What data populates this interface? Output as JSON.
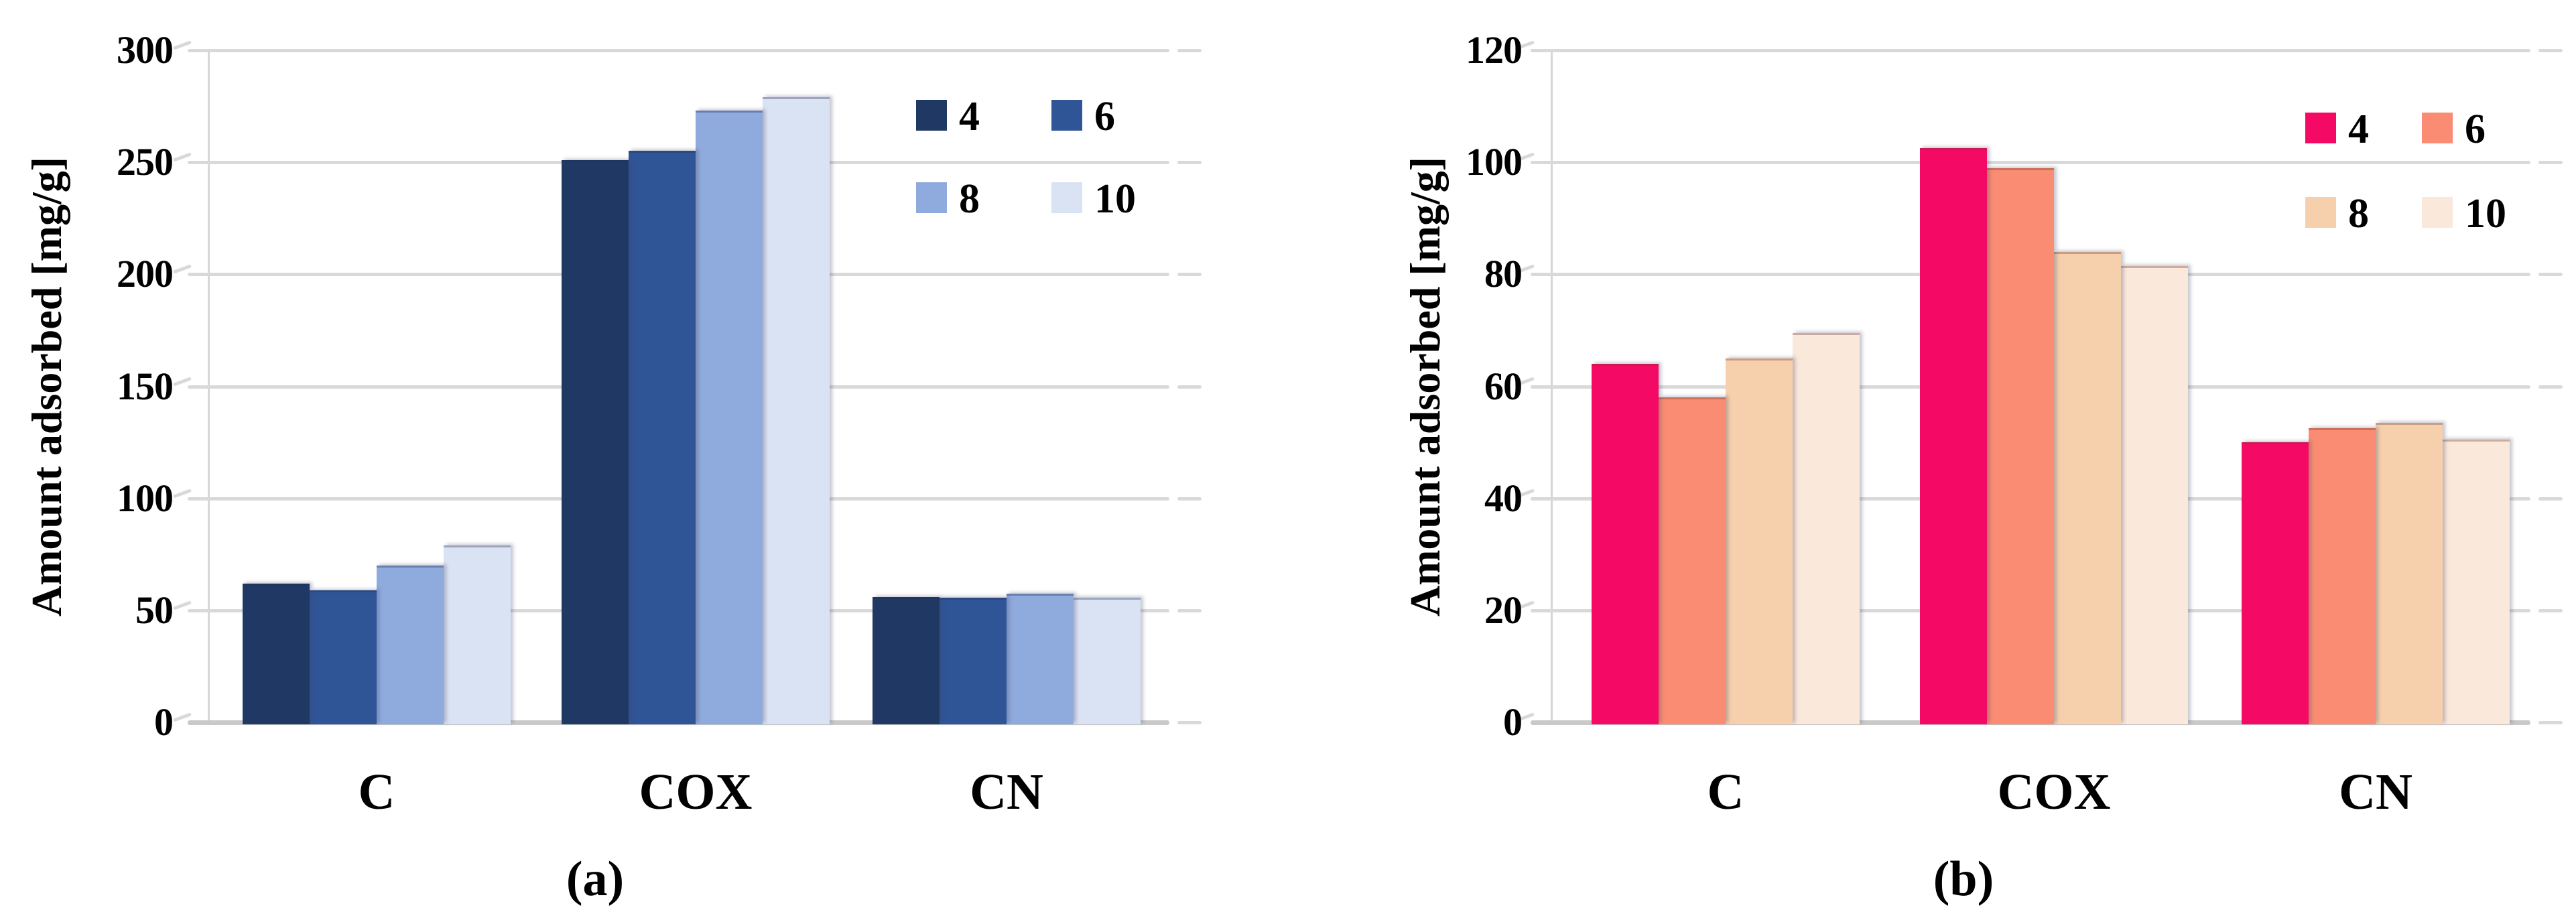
{
  "figure": {
    "axis_title": "Amount adsorbed [mg/g]",
    "categories": [
      "C",
      "COX",
      "CN"
    ],
    "legend_labels": [
      "4",
      "6",
      "8",
      "10"
    ],
    "grid_color": "#d9d9d9",
    "background_color": "#ffffff"
  },
  "chart_data": [
    {
      "id": "a",
      "type": "bar",
      "caption": "(a)",
      "ylabel": "Amount adsorbed [mg/g]",
      "xlabel": "",
      "categories": [
        "C",
        "COX",
        "CN"
      ],
      "series": [
        {
          "name": "4",
          "color": "#1F3864",
          "values": [
            62,
            251,
            56
          ]
        },
        {
          "name": "6",
          "color": "#2F5597",
          "values": [
            59,
            255,
            55.5
          ]
        },
        {
          "name": "8",
          "color": "#8FAADC",
          "values": [
            70,
            273,
            57.5
          ]
        },
        {
          "name": "10",
          "color": "#DAE3F3",
          "values": [
            79,
            279,
            55.5
          ]
        }
      ],
      "ylim": [
        0,
        300
      ],
      "ytick_step": 50,
      "yticks": [
        "0",
        "50",
        "100",
        "150",
        "200",
        "250",
        "300"
      ],
      "grid": true,
      "legend_position": "top-right"
    },
    {
      "id": "b",
      "type": "bar",
      "caption": "(b)",
      "ylabel": "Amount adsorbed [mg/g]",
      "xlabel": "",
      "categories": [
        "C",
        "COX",
        "CN"
      ],
      "series": [
        {
          "name": "4",
          "color": "#F40A64",
          "values": [
            64,
            102.5,
            50
          ]
        },
        {
          "name": "6",
          "color": "#F98C72",
          "values": [
            58,
            99,
            52.5
          ]
        },
        {
          "name": "8",
          "color": "#F6CFAD",
          "values": [
            65,
            84,
            53.5
          ]
        },
        {
          "name": "10",
          "color": "#FAE8DB",
          "values": [
            69.5,
            81.5,
            50.5
          ]
        }
      ],
      "ylim": [
        0,
        120
      ],
      "ytick_step": 20,
      "yticks": [
        "0",
        "20",
        "40",
        "60",
        "80",
        "100",
        "120"
      ],
      "grid": true,
      "legend_position": "top-right"
    }
  ]
}
